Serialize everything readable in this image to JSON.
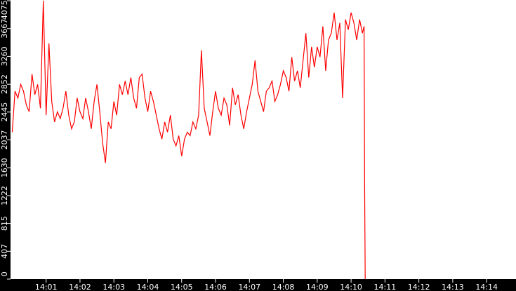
{
  "chart_data": {
    "type": "line",
    "title": "",
    "xlabel": "",
    "ylabel": "",
    "ylim": [
      0,
      4075
    ],
    "xlim": [
      "13:59:57",
      "14:14:52"
    ],
    "grid": false,
    "background_color": "#ffffff",
    "axis_color": "#000000",
    "line_color": "#ff0000",
    "y_ticks": [
      "0",
      "407",
      "815",
      "1222",
      "1630",
      "2037",
      "2445",
      "2852",
      "3260",
      "3667",
      "4075"
    ],
    "x_ticks": [
      "14:01",
      "14:02",
      "14:03",
      "14:04",
      "14:05",
      "14:06",
      "14:07",
      "14:08",
      "14:09",
      "14:10",
      "14:11",
      "14:12",
      "14:13",
      "14:14"
    ],
    "series": [
      {
        "x": [
          "14:00:00",
          "14:00:05",
          "14:00:10",
          "14:00:15",
          "14:00:20",
          "14:00:25",
          "14:00:30",
          "14:00:35",
          "14:00:40",
          "14:00:45",
          "14:00:50",
          "14:00:55",
          "14:01:00",
          "14:01:05",
          "14:01:10",
          "14:01:15",
          "14:01:20",
          "14:01:25",
          "14:01:30",
          "14:01:35",
          "14:01:40",
          "14:01:45",
          "14:01:50",
          "14:01:55",
          "14:02:00",
          "14:02:05",
          "14:02:10",
          "14:02:15",
          "14:02:20",
          "14:02:25",
          "14:02:30",
          "14:02:35",
          "14:02:40",
          "14:02:45",
          "14:02:50",
          "14:02:55",
          "14:03:00",
          "14:03:05",
          "14:03:10",
          "14:03:15",
          "14:03:20",
          "14:03:25",
          "14:03:30",
          "14:03:35",
          "14:03:40",
          "14:03:45",
          "14:03:50",
          "14:03:55",
          "14:04:00",
          "14:04:05",
          "14:04:10",
          "14:04:15",
          "14:04:20",
          "14:04:25",
          "14:04:30",
          "14:04:35",
          "14:04:40",
          "14:04:45",
          "14:04:50",
          "14:04:55",
          "14:05:00",
          "14:05:05",
          "14:05:10",
          "14:05:15",
          "14:05:20",
          "14:05:25",
          "14:05:30",
          "14:05:35",
          "14:05:40",
          "14:05:45",
          "14:05:50",
          "14:05:55",
          "14:06:00",
          "14:06:05",
          "14:06:10",
          "14:06:15",
          "14:06:20",
          "14:06:25",
          "14:06:30",
          "14:06:35",
          "14:06:40",
          "14:06:45",
          "14:06:50",
          "14:06:55",
          "14:07:00",
          "14:07:05",
          "14:07:10",
          "14:07:15",
          "14:07:20",
          "14:07:25",
          "14:07:30",
          "14:07:35",
          "14:07:40",
          "14:07:45",
          "14:07:50",
          "14:07:55",
          "14:08:00",
          "14:08:05",
          "14:08:10",
          "14:08:15",
          "14:08:20",
          "14:08:25",
          "14:08:30",
          "14:08:35",
          "14:08:40",
          "14:08:45",
          "14:08:50",
          "14:08:55",
          "14:09:00",
          "14:09:05",
          "14:09:10",
          "14:09:15",
          "14:09:20",
          "14:09:25",
          "14:09:30",
          "14:09:35",
          "14:09:40",
          "14:09:45",
          "14:09:50",
          "14:09:55",
          "14:10:00",
          "14:10:05",
          "14:10:10",
          "14:10:15",
          "14:10:20",
          "14:10:23",
          "14:10:24",
          "14:10:25"
        ],
        "y": [
          2150,
          2750,
          2650,
          2850,
          2750,
          2550,
          2450,
          3000,
          2700,
          2850,
          2500,
          4075,
          2400,
          3450,
          2600,
          2300,
          2450,
          2350,
          2500,
          2750,
          2400,
          2200,
          2300,
          2650,
          2450,
          2350,
          2650,
          2450,
          2200,
          2600,
          2850,
          2450,
          2000,
          1700,
          2300,
          2200,
          2600,
          2400,
          2850,
          2700,
          2900,
          2700,
          2950,
          2650,
          2500,
          2950,
          3000,
          2650,
          2450,
          2750,
          2600,
          2400,
          2200,
          2050,
          2300,
          2150,
          2400,
          2050,
          1950,
          2100,
          1800,
          2050,
          2150,
          2100,
          2300,
          2200,
          2400,
          3350,
          2500,
          2300,
          2100,
          2450,
          2750,
          2500,
          2400,
          2650,
          2550,
          2250,
          2800,
          2550,
          2700,
          2400,
          2200,
          2450,
          2650,
          2850,
          3200,
          2750,
          2600,
          2450,
          2750,
          2800,
          2900,
          2600,
          2700,
          2850,
          3050,
          2950,
          2750,
          3250,
          2900,
          3050,
          2800,
          3200,
          3600,
          2950,
          3400,
          3100,
          3400,
          3250,
          3700,
          3050,
          3500,
          3600,
          3900,
          3500,
          3750,
          2650,
          3800,
          3650,
          3900,
          3750,
          3500,
          3800,
          3600,
          3700,
          1350,
          0
        ]
      }
    ]
  }
}
